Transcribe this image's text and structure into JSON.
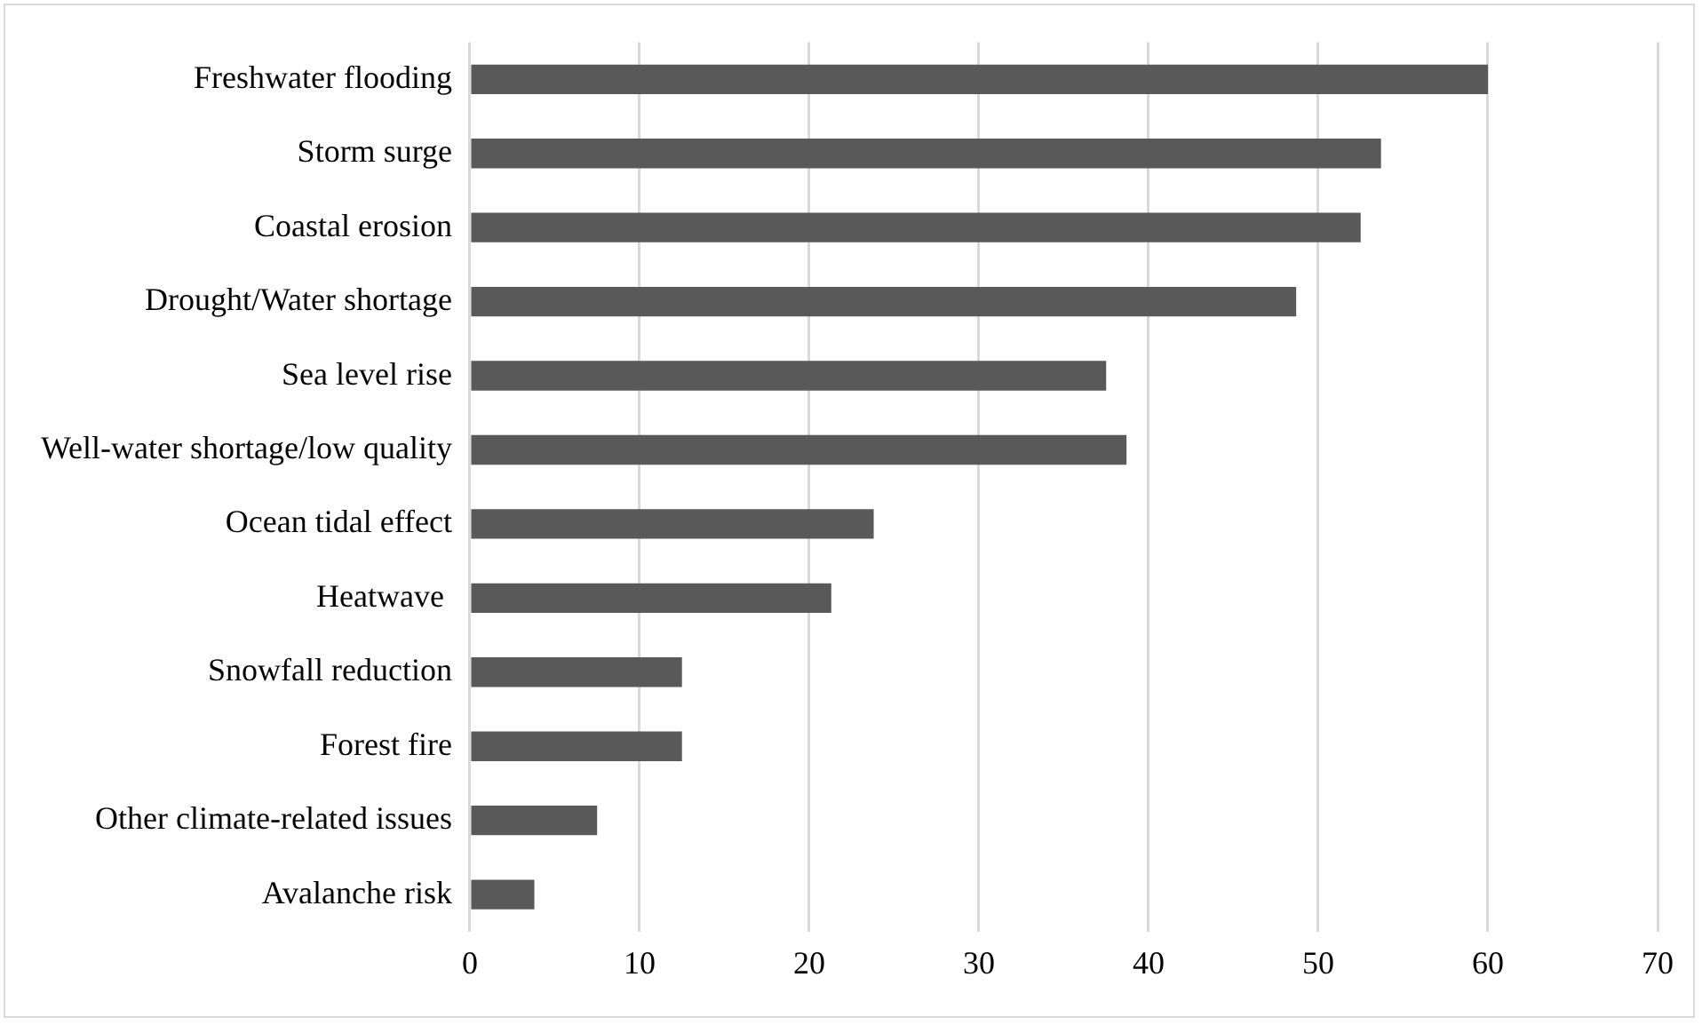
{
  "chart_data": {
    "type": "bar",
    "orientation": "horizontal",
    "categories": [
      "Freshwater flooding",
      "Storm surge",
      "Coastal erosion",
      "Drought/Water shortage",
      "Sea level rise",
      "Well-water shortage/low quality",
      "Ocean tidal effect",
      "Heatwave ",
      "Snowfall reduction",
      "Forest fire",
      "Other climate-related issues",
      "Avalanche risk"
    ],
    "values": [
      60,
      53.7,
      52.5,
      48.7,
      37.5,
      38.7,
      23.8,
      21.3,
      12.5,
      12.5,
      7.5,
      3.8
    ],
    "color": "#595959",
    "xlim": [
      0,
      70
    ],
    "xticks": [
      0,
      10,
      20,
      30,
      40,
      50,
      60,
      70
    ],
    "grid": "x",
    "legend": false
  }
}
